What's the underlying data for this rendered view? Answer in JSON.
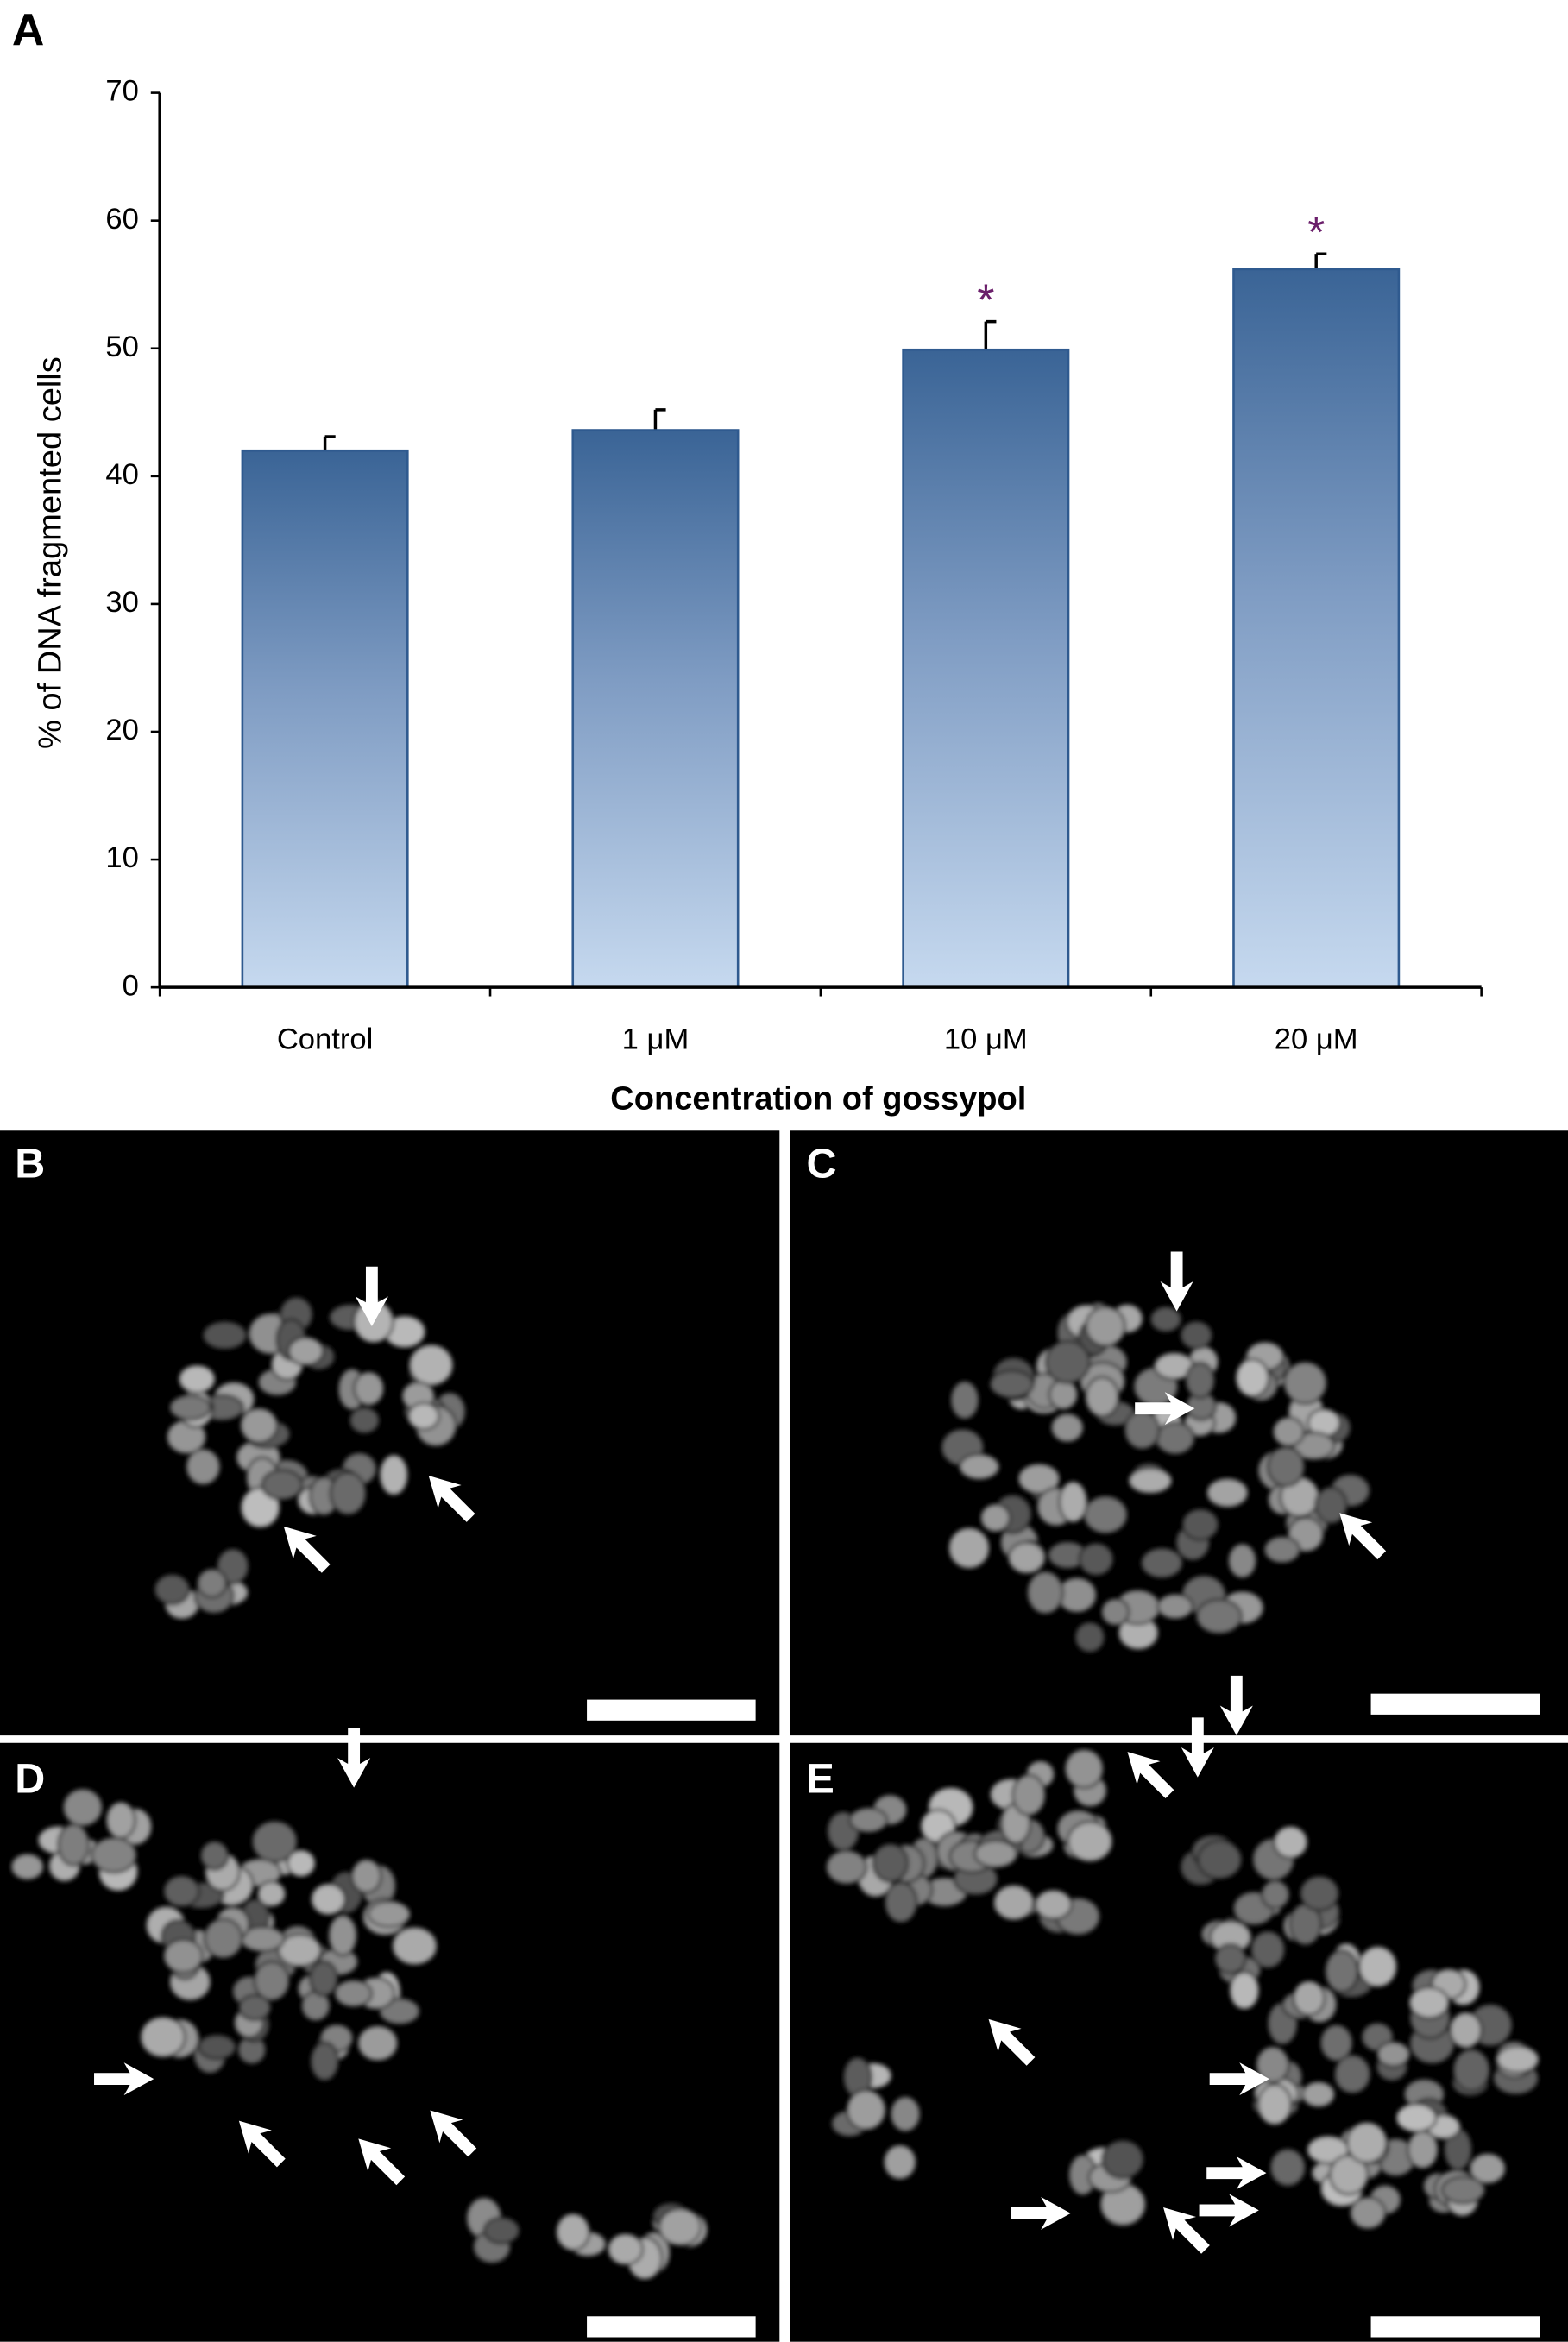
{
  "chart_data": {
    "type": "bar",
    "panel_label": "A",
    "x_label": "Concentration of gossypol",
    "y_label": "% of DNA fragmented cells",
    "categories": [
      "Control",
      "1 μM",
      "10 μM",
      "20 μM"
    ],
    "values": [
      42,
      43.6,
      49.9,
      56.2
    ],
    "errors": [
      1.1,
      1.6,
      2.2,
      1.2
    ],
    "significance": [
      null,
      null,
      "*",
      "*"
    ],
    "color": "#3a6496",
    "ylim": [
      0,
      70
    ],
    "yticks": [
      0,
      10,
      20,
      30,
      40,
      50,
      60,
      70
    ],
    "grid": false
  },
  "panels": [
    {
      "label": "B"
    },
    {
      "label": "C"
    },
    {
      "label": "D"
    },
    {
      "label": "E"
    }
  ]
}
